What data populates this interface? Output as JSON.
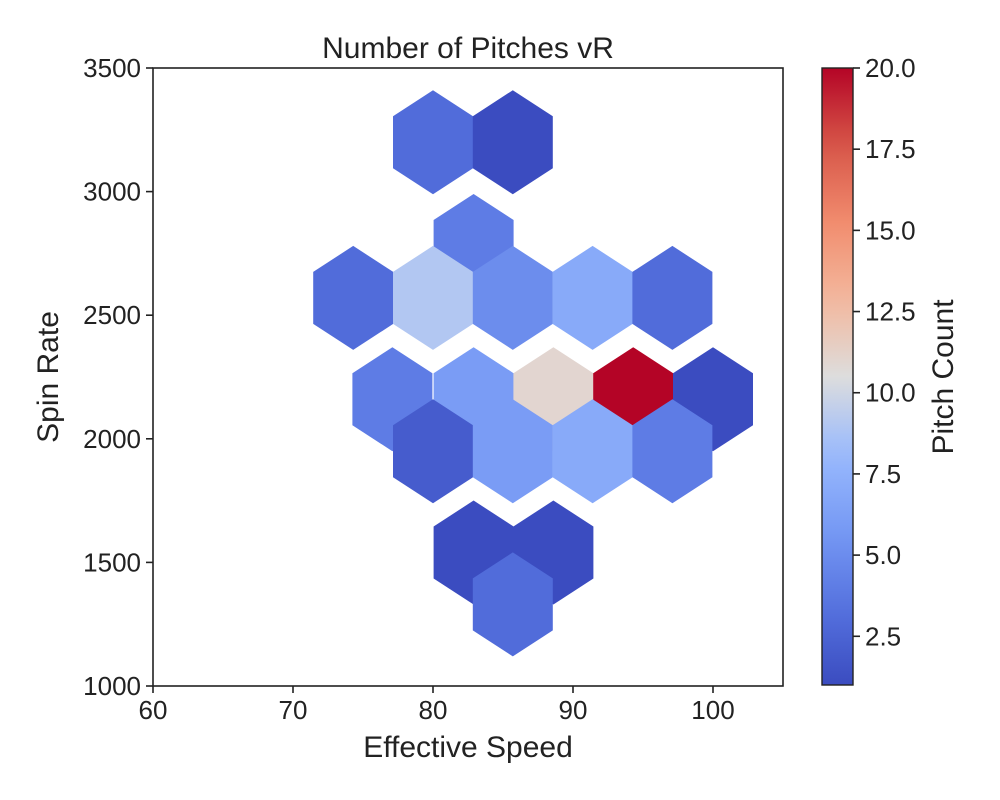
{
  "chart_data": {
    "type": "heatmap",
    "subtype": "hexbin",
    "title": "Number of Pitches vR",
    "xlabel": "Effective Speed",
    "ylabel": "Spin Rate",
    "xlim": [
      60,
      105
    ],
    "ylim": [
      1000,
      3500
    ],
    "xticks": [
      60,
      70,
      80,
      90,
      100
    ],
    "yticks": [
      1000,
      1500,
      2000,
      2500,
      3000,
      3500
    ],
    "grid": false,
    "colormap": "coolwarm",
    "colorbar": {
      "label": "Pitch Count",
      "range": [
        1,
        20
      ],
      "ticks": [
        "2.5",
        "5.0",
        "7.5",
        "10.0",
        "12.5",
        "15.0",
        "17.5",
        "20.0"
      ],
      "position": "right"
    },
    "cells": [
      {
        "x": 80.0,
        "y": 3200,
        "count": 3
      },
      {
        "x": 85.7,
        "y": 3200,
        "count": 1
      },
      {
        "x": 82.9,
        "y": 2780,
        "count": 4
      },
      {
        "x": 74.3,
        "y": 2570,
        "count": 3
      },
      {
        "x": 80.0,
        "y": 2570,
        "count": 9
      },
      {
        "x": 85.7,
        "y": 2570,
        "count": 5
      },
      {
        "x": 91.4,
        "y": 2570,
        "count": 7
      },
      {
        "x": 97.1,
        "y": 2570,
        "count": 3
      },
      {
        "x": 77.1,
        "y": 2160,
        "count": 4
      },
      {
        "x": 82.9,
        "y": 2160,
        "count": 6
      },
      {
        "x": 88.6,
        "y": 2160,
        "count": 11
      },
      {
        "x": 94.3,
        "y": 2160,
        "count": 20
      },
      {
        "x": 100.0,
        "y": 2160,
        "count": 1
      },
      {
        "x": 80.0,
        "y": 1950,
        "count": 2
      },
      {
        "x": 85.7,
        "y": 1950,
        "count": 6
      },
      {
        "x": 91.4,
        "y": 1950,
        "count": 7
      },
      {
        "x": 97.1,
        "y": 1950,
        "count": 4
      },
      {
        "x": 82.9,
        "y": 1540,
        "count": 1
      },
      {
        "x": 88.6,
        "y": 1540,
        "count": 1
      },
      {
        "x": 85.7,
        "y": 1330,
        "count": 3
      }
    ]
  }
}
